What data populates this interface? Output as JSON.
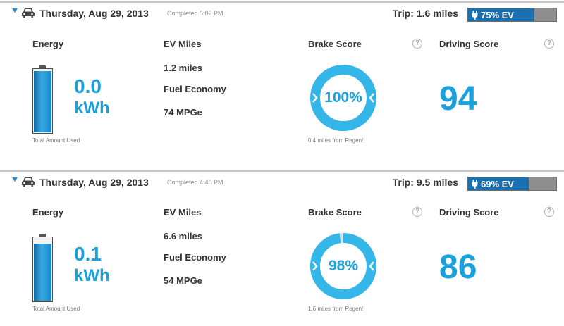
{
  "trips": [
    {
      "date": "Thursday, Aug 29, 2013",
      "completed": "Completed 5:02 PM",
      "trip_distance": "Trip: 1.6 miles",
      "ev_percent_label": "75% EV",
      "ev_fraction": 0.75,
      "energy": {
        "title": "Energy",
        "value": "0.0",
        "unit": "kWh",
        "caption": "Total Amount Used",
        "battery_fill": 0.98
      },
      "ev_miles": {
        "title": "EV Miles",
        "miles": "1.2 miles",
        "fuel_title": "Fuel Economy",
        "mpge": "74 MPGe"
      },
      "brake": {
        "title": "Brake Score",
        "score": "100%",
        "fraction": 1.0,
        "caption": "0.4 miles from Regen!"
      },
      "driving": {
        "title": "Driving Score",
        "score": "94"
      }
    },
    {
      "date": "Thursday, Aug 29, 2013",
      "completed": "Completed 4:48 PM",
      "trip_distance": "Trip: 9.5 miles",
      "ev_percent_label": "69% EV",
      "ev_fraction": 0.69,
      "energy": {
        "title": "Energy",
        "value": "0.1",
        "unit": "kWh",
        "caption": "Total Amount Used",
        "battery_fill": 0.91
      },
      "ev_miles": {
        "title": "EV Miles",
        "miles": "6.6 miles",
        "fuel_title": "Fuel Economy",
        "mpge": "54 MPGe"
      },
      "brake": {
        "title": "Brake Score",
        "score": "98%",
        "fraction": 0.98,
        "caption": "1.6 miles from Regen!"
      },
      "driving": {
        "title": "Driving Score",
        "score": "86"
      }
    }
  ],
  "icons": {
    "expand": "triangle-down-icon",
    "car": "car-icon",
    "plug": "plug-icon",
    "help": "question-mark-icon"
  },
  "help_glyph": "?",
  "colors": {
    "accent": "#1aa1dc",
    "ev_bar": "#1a6fb0",
    "ev_bar_bg": "#8e8e8e",
    "gauge_light": "#8fd3f0"
  }
}
